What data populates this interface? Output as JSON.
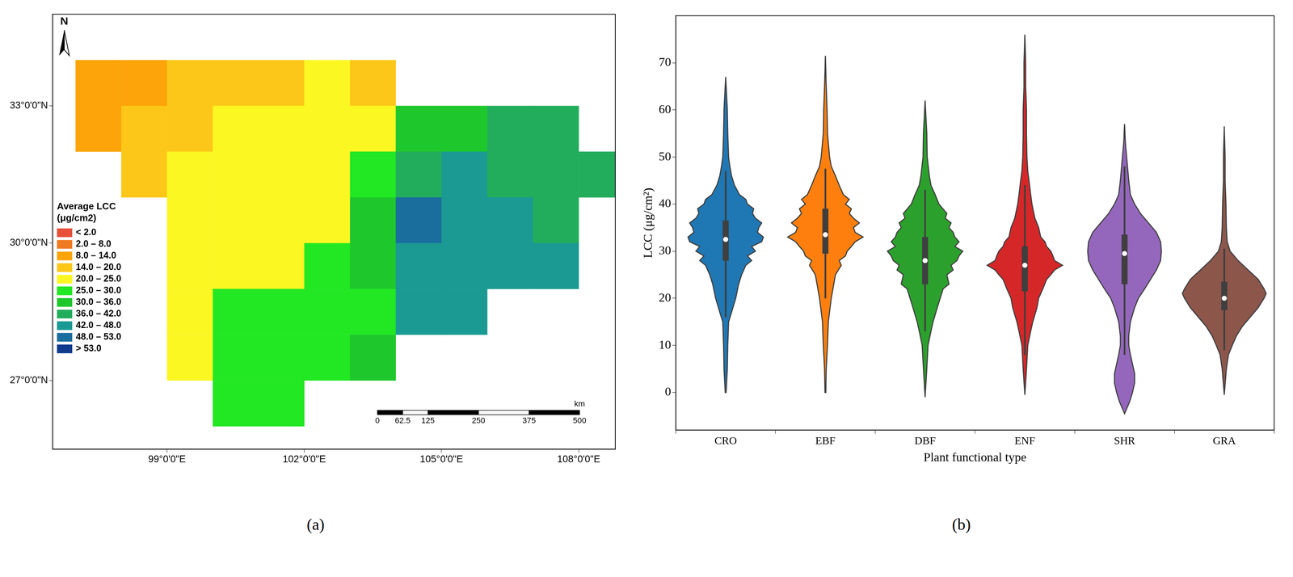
{
  "chart_data": [
    {
      "type": "map",
      "panel_label": "(a)",
      "north_label": "N",
      "legend_title": "Average LCC (μg/cm2)",
      "xlim": [
        96.5,
        108.8
      ],
      "ylim": [
        25.5,
        35.0
      ],
      "xticks": [
        {
          "value": 99,
          "label": "99°0'0\"E"
        },
        {
          "value": 102,
          "label": "102°0'0\"E"
        },
        {
          "value": 105,
          "label": "105°0'0\"E"
        },
        {
          "value": 108,
          "label": "108°0'0\"E"
        }
      ],
      "yticks": [
        {
          "value": 27,
          "label": "27°0'0\"N"
        },
        {
          "value": 30,
          "label": "30°0'0\"N"
        },
        {
          "value": 33,
          "label": "33°0'0\"N"
        }
      ],
      "grid": false,
      "lon": [
        97.5,
        98.5,
        99.5,
        100.5,
        101.5,
        102.5,
        103.5,
        104.5,
        105.5,
        106.5,
        107.5,
        108.5
      ],
      "lat": [
        33.5,
        32.5,
        31.5,
        30.5,
        29.5,
        28.5,
        27.5,
        26.5
      ],
      "cells": [
        [
          9,
          11,
          14,
          17,
          18,
          20,
          19,
          null,
          null,
          null,
          null,
          null
        ],
        [
          13,
          16,
          18,
          20,
          21,
          22,
          24,
          30,
          35,
          38,
          36,
          null
        ],
        [
          null,
          18,
          20,
          21,
          22,
          23,
          27,
          38,
          42,
          40,
          39,
          36
        ],
        [
          null,
          null,
          21,
          22,
          21,
          24,
          30,
          48,
          46,
          42,
          40,
          null
        ],
        [
          null,
          null,
          22,
          24,
          22,
          25,
          32,
          47,
          42,
          43,
          44,
          null
        ],
        [
          null,
          null,
          21,
          26,
          25,
          27,
          28,
          42,
          44,
          null,
          null,
          null
        ],
        [
          null,
          null,
          24,
          26,
          27,
          28,
          30,
          null,
          null,
          null,
          null,
          null
        ],
        [
          null,
          null,
          null,
          26,
          28,
          null,
          null,
          null,
          null,
          null,
          null,
          null
        ]
      ],
      "color_classes": {
        "breaks": [
          2.0,
          8.0,
          14.0,
          20.0,
          25.0,
          30.0,
          36.0,
          42.0,
          48.0,
          53.0
        ],
        "labels": [
          "< 2.0",
          "2.0 – 8.0",
          "8.0 – 14.0",
          "14.0 – 20.0",
          "20.0 – 25.0",
          "25.0 – 30.0",
          "30.0 – 36.0",
          "36.0 – 42.0",
          "42.0 – 48.0",
          "48.0 – 53.0",
          "> 53.0"
        ],
        "colors": [
          "#e8503a",
          "#f07a22",
          "#fca40a",
          "#fcc718",
          "#fbf723",
          "#22e823",
          "#1ec82c",
          "#22ad5c",
          "#1a9a93",
          "#1a6e9e",
          "#103a8c"
        ]
      },
      "scale_bar": {
        "ticks": [
          0,
          62.5,
          125,
          250,
          375,
          500
        ],
        "unit": "km"
      }
    },
    {
      "type": "violin",
      "panel_label": "(b)",
      "x_label": "Plant functional type",
      "y_label": "LCC (μg/cm²)",
      "categories": [
        "CRO",
        "EBF",
        "DBF",
        "ENF",
        "SHR",
        "GRA"
      ],
      "colors": [
        "#1f77b4",
        "#ff7f0e",
        "#2ca02c",
        "#d62728",
        "#9467bd",
        "#8c564b"
      ],
      "ylim": [
        -8,
        80
      ],
      "yticks": [
        0,
        10,
        20,
        30,
        40,
        50,
        60,
        70
      ],
      "grid": false,
      "violins": [
        {
          "y": [
            0,
            5,
            10,
            15,
            17,
            20,
            23,
            25,
            27,
            28,
            29,
            30,
            31,
            32,
            33,
            34,
            35,
            36,
            37,
            38,
            39,
            40,
            41,
            42,
            44,
            46,
            48,
            50,
            55,
            60,
            67
          ],
          "density": [
            0.01,
            0.04,
            0.05,
            0.07,
            0.14,
            0.24,
            0.31,
            0.38,
            0.48,
            0.62,
            0.52,
            0.71,
            0.62,
            0.86,
            0.9,
            0.76,
            0.79,
            0.86,
            0.71,
            0.64,
            0.67,
            0.52,
            0.48,
            0.33,
            0.21,
            0.14,
            0.1,
            0.07,
            0.05,
            0.04,
            0
          ],
          "q1": 28,
          "median": 32.5,
          "q3": 36.5,
          "whisker_low": 16,
          "whisker_high": 47
        },
        {
          "y": [
            0,
            5,
            10,
            15,
            20,
            25,
            27,
            28,
            29,
            30,
            31,
            32,
            33,
            34,
            35,
            36,
            37,
            38,
            39,
            40,
            41,
            42,
            44,
            46,
            48,
            50,
            55,
            60,
            65,
            71.5
          ],
          "density": [
            0.01,
            0.02,
            0.05,
            0.07,
            0.14,
            0.24,
            0.38,
            0.33,
            0.48,
            0.52,
            0.62,
            0.71,
            0.9,
            0.71,
            0.67,
            0.81,
            0.67,
            0.57,
            0.62,
            0.48,
            0.57,
            0.43,
            0.33,
            0.24,
            0.14,
            0.1,
            0.05,
            0.04,
            0.02,
            0
          ],
          "q1": 29.5,
          "median": 33.5,
          "q3": 39,
          "whisker_low": 20,
          "whisker_high": 47.5
        },
        {
          "y": [
            -1,
            5,
            10,
            13,
            15,
            18,
            20,
            22,
            23,
            25,
            26,
            27,
            28,
            29,
            30,
            31,
            32,
            33,
            34,
            35,
            36,
            37,
            38,
            40,
            42,
            44,
            46,
            50,
            55,
            62
          ],
          "density": [
            0,
            0.04,
            0.07,
            0.14,
            0.19,
            0.29,
            0.36,
            0.43,
            0.57,
            0.52,
            0.67,
            0.62,
            0.76,
            0.81,
            0.9,
            0.71,
            0.81,
            0.71,
            0.67,
            0.57,
            0.62,
            0.48,
            0.52,
            0.33,
            0.24,
            0.14,
            0.1,
            0.05,
            0.04,
            0
          ],
          "q1": 23,
          "median": 28,
          "q3": 33,
          "whisker_low": 13,
          "whisker_high": 43
        },
        {
          "y": [
            -0.5,
            5,
            10,
            13,
            15,
            18,
            20,
            22,
            24,
            25,
            26,
            27,
            28,
            29,
            30,
            31,
            32,
            33,
            35,
            37,
            40,
            42,
            45,
            47,
            50,
            55,
            60,
            65,
            70,
            76
          ],
          "density": [
            0,
            0.04,
            0.07,
            0.14,
            0.19,
            0.29,
            0.33,
            0.43,
            0.52,
            0.62,
            0.71,
            0.9,
            0.71,
            0.67,
            0.62,
            0.52,
            0.48,
            0.38,
            0.33,
            0.24,
            0.17,
            0.14,
            0.1,
            0.07,
            0.05,
            0.04,
            0.04,
            0.02,
            0.02,
            0
          ],
          "q1": 21.5,
          "median": 27,
          "q3": 31,
          "whisker_low": 8,
          "whisker_high": 44
        },
        {
          "y": [
            -4.5,
            -2,
            0,
            2,
            4,
            6,
            8,
            10,
            12,
            15,
            18,
            20,
            22,
            24,
            26,
            28,
            30,
            32,
            34,
            36,
            38,
            40,
            42,
            45,
            48,
            50,
            53,
            57
          ],
          "density": [
            0,
            0.12,
            0.19,
            0.24,
            0.24,
            0.19,
            0.14,
            0.1,
            0.1,
            0.14,
            0.24,
            0.33,
            0.48,
            0.62,
            0.76,
            0.86,
            0.88,
            0.86,
            0.76,
            0.57,
            0.38,
            0.24,
            0.14,
            0.1,
            0.07,
            0.05,
            0.02,
            0
          ],
          "q1": 23,
          "median": 29.5,
          "q3": 33.5,
          "whisker_low": 8,
          "whisker_high": 48
        },
        {
          "y": [
            -0.5,
            5,
            8,
            10,
            12,
            14,
            16,
            18,
            20,
            21,
            22,
            24,
            26,
            28,
            30,
            32,
            35,
            40,
            45,
            50,
            56.5
          ],
          "density": [
            0,
            0.05,
            0.1,
            0.19,
            0.29,
            0.43,
            0.62,
            0.81,
            0.95,
            1,
            0.95,
            0.81,
            0.57,
            0.33,
            0.14,
            0.07,
            0.05,
            0.04,
            0.02,
            0.02,
            0
          ],
          "q1": 17.5,
          "median": 20,
          "q3": 23.5,
          "whisker_low": 9,
          "whisker_high": 30.5
        }
      ]
    }
  ]
}
